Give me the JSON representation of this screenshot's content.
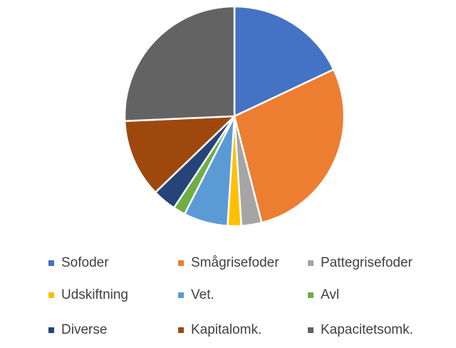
{
  "chart_data": {
    "type": "pie",
    "title": "",
    "slices": [
      {
        "label": "Sofoder",
        "value": 18.0,
        "color": "#4472C4"
      },
      {
        "label": "Smågrisefoder",
        "value": 28.0,
        "color": "#ED7D31"
      },
      {
        "label": "Pattegrisefoder",
        "value": 3.0,
        "color": "#A5A5A5"
      },
      {
        "label": "Udskiftning",
        "value": 2.0,
        "color": "#FFC000"
      },
      {
        "label": "Vet.",
        "value": 6.5,
        "color": "#5B9BD5"
      },
      {
        "label": "Avl",
        "value": 1.8,
        "color": "#70AD47"
      },
      {
        "label": "Diverse",
        "value": 3.5,
        "color": "#264478"
      },
      {
        "label": "Kapitalomk.",
        "value": 11.5,
        "color": "#9E480E"
      },
      {
        "label": "Kapacitetsomk.",
        "value": 25.7,
        "color": "#636363"
      }
    ],
    "legend_position": "bottom",
    "start_angle": "top, clockwise"
  }
}
